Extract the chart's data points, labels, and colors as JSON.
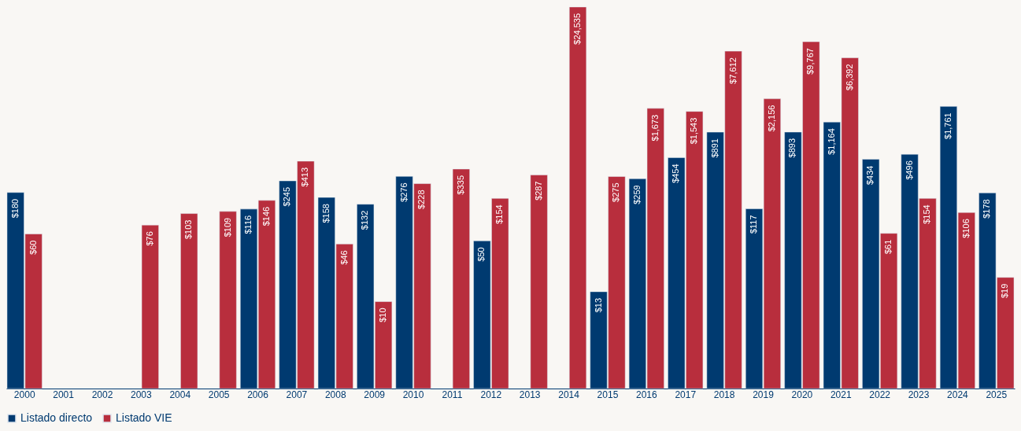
{
  "chart_data": {
    "type": "bar",
    "log": true,
    "ylim": [
      1,
      25000
    ],
    "tick_labels": "x",
    "legend": "bottom",
    "grid": false,
    "categories": [
      "2000",
      "2001",
      "2002",
      "2003",
      "2004",
      "2005",
      "2006",
      "2007",
      "2008",
      "2009",
      "2010",
      "2011",
      "2012",
      "2013",
      "2014",
      "2015",
      "2016",
      "2017",
      "2018",
      "2019",
      "2020",
      "2021",
      "2022",
      "2023",
      "2024",
      "2025"
    ],
    "series": [
      {
        "name": "Listado directo",
        "color": "#003a70",
        "values": [
          180,
          null,
          null,
          null,
          null,
          null,
          116,
          245,
          158,
          132,
          276,
          null,
          50,
          null,
          null,
          13,
          259,
          454,
          891,
          117,
          893,
          1164,
          434,
          496,
          1761,
          178
        ],
        "value_labels": [
          "$180",
          null,
          null,
          null,
          null,
          null,
          "$116",
          "$245",
          "$158",
          "$132",
          "$276",
          null,
          "$50",
          null,
          null,
          "$13",
          "$259",
          "$454",
          "$891",
          "$117",
          "$893",
          "$1,164",
          "$434",
          "$496",
          "$1,761",
          "$178"
        ]
      },
      {
        "name": "Listado VIE",
        "color": "#b82e3d",
        "values": [
          60,
          null,
          null,
          76,
          103,
          109,
          146,
          413,
          46,
          10,
          228,
          335,
          154,
          287,
          24535,
          275,
          1673,
          1543,
          7612,
          2156,
          9767,
          6392,
          61,
          154,
          106,
          19
        ],
        "value_labels": [
          "$60",
          null,
          null,
          "$76",
          "$103",
          "$109",
          "$146",
          "$413",
          "$46",
          "$10",
          "$228",
          "$335",
          "$154",
          "$287",
          "$24,535",
          "$275",
          "$1,673",
          "$1,543",
          "$7,612",
          "$2,156",
          "$9,767",
          "$6,392",
          "$61",
          "$154",
          "$106",
          "$19"
        ]
      }
    ]
  }
}
